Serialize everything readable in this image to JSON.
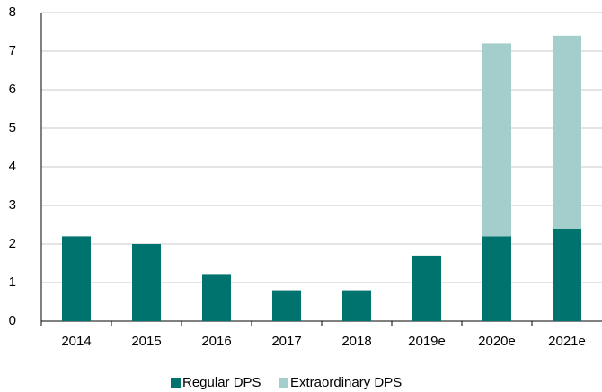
{
  "chart_data": {
    "type": "stacked_bar",
    "categories": [
      "2014",
      "2015",
      "2016",
      "2017",
      "2018",
      "2019e",
      "2020e",
      "2021e"
    ],
    "series": [
      {
        "name": "Regular DPS",
        "color": "#00736e",
        "values": [
          2.2,
          2.0,
          1.2,
          0.8,
          0.8,
          1.7,
          2.2,
          2.4
        ]
      },
      {
        "name": "Extraordinary DPS",
        "color": "#a3cecc",
        "values": [
          0,
          0,
          0,
          0,
          0,
          0,
          5.0,
          5.0
        ]
      }
    ],
    "ylim": [
      0,
      8
    ],
    "yticks": [
      0,
      1,
      2,
      3,
      4,
      5,
      6,
      7,
      8
    ],
    "grid": true,
    "legend": "bottom"
  }
}
